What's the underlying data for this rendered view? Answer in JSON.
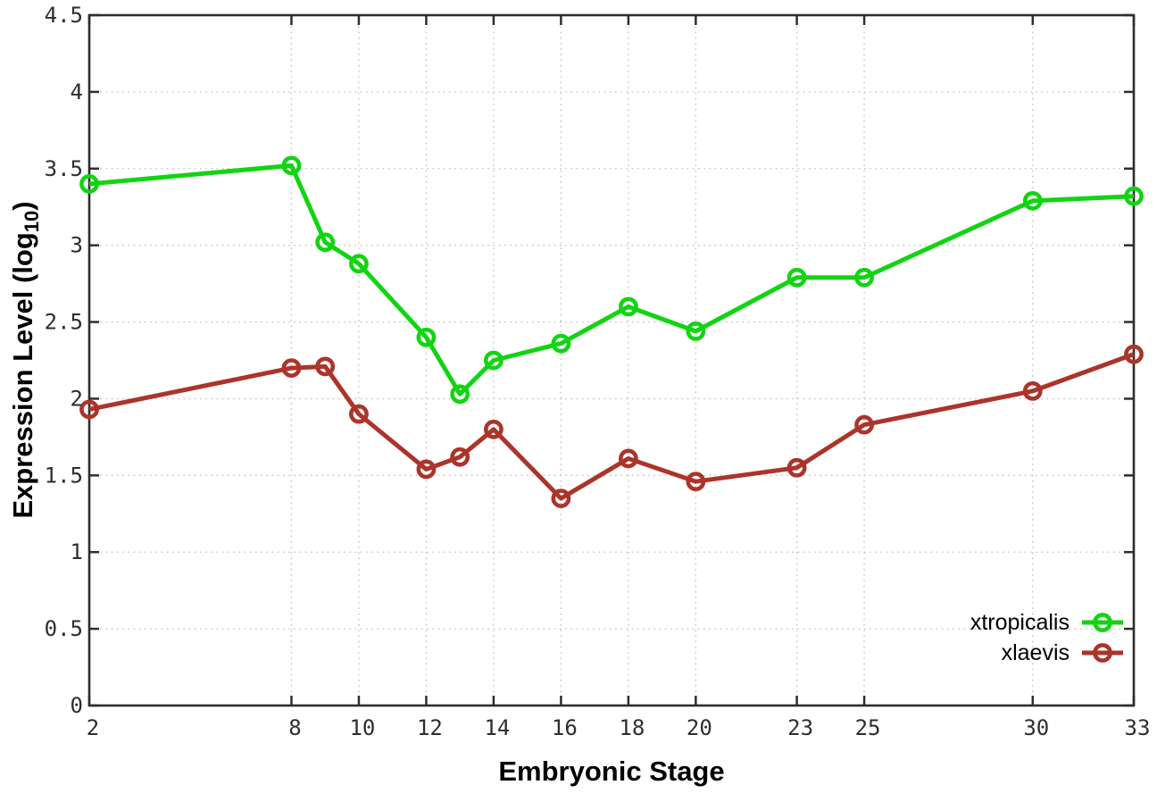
{
  "chart_data": {
    "type": "line",
    "title": "",
    "xlabel": "Embryonic Stage",
    "ylabel": "Expression Level (log10)",
    "ylabel_prefix": "Expression Level (log",
    "ylabel_subscript": "10",
    "ylabel_suffix": ")",
    "xlim": [
      2,
      33
    ],
    "ylim": [
      0,
      4.5
    ],
    "grid": true,
    "legend_position": "inside-bottom-right",
    "x": [
      2,
      8,
      9,
      10,
      12,
      13,
      14,
      16,
      18,
      20,
      23,
      25,
      30,
      33
    ],
    "xticks": [
      2,
      8,
      10,
      12,
      14,
      16,
      18,
      20,
      23,
      25,
      30,
      33
    ],
    "xtick_labels": [
      "2",
      "8",
      "10",
      "12",
      "14",
      "16",
      "18",
      "20",
      "23",
      "25",
      "30",
      "33"
    ],
    "yticks": [
      0,
      0.5,
      1,
      1.5,
      2,
      2.5,
      3,
      3.5,
      4,
      4.5
    ],
    "ytick_labels": [
      "0",
      "0.5",
      "1",
      "1.5",
      "2",
      "2.5",
      "3",
      "3.5",
      "4",
      "4.5"
    ],
    "series": [
      {
        "name": "xtropicalis",
        "color": "#12d412",
        "marker": "open-circle",
        "values": [
          3.4,
          3.52,
          3.02,
          2.88,
          2.4,
          2.03,
          2.25,
          2.36,
          2.6,
          2.44,
          2.79,
          2.79,
          3.29,
          3.32
        ]
      },
      {
        "name": "xlaevis",
        "color": "#ab342b",
        "marker": "open-circle",
        "values": [
          1.93,
          2.2,
          2.21,
          1.9,
          1.54,
          1.62,
          1.8,
          1.35,
          1.61,
          1.46,
          1.55,
          1.83,
          2.05,
          2.29
        ]
      }
    ]
  }
}
